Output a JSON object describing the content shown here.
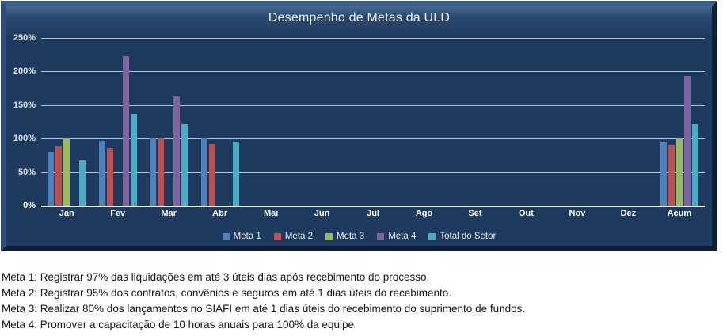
{
  "chart": {
    "panel_bg": "#1F3A5F",
    "grid_color": "#CBD8EA",
    "text_color": "#FFFFFF",
    "bevel_light": "#3A608C",
    "bevel_dark": "#101F38"
  },
  "chart_data": {
    "type": "bar",
    "title": "Desempenho de Metas da ULD",
    "categories": [
      "Jan",
      "Fev",
      "Mar",
      "Abr",
      "Mai",
      "Jun",
      "Jul",
      "Ago",
      "Set",
      "Out",
      "Nov",
      "Dez",
      "Acum"
    ],
    "series": [
      {
        "name": "Meta 1",
        "color": "#4F81BD",
        "values": [
          80,
          97,
          100,
          100,
          0,
          0,
          0,
          0,
          0,
          0,
          0,
          0,
          94
        ]
      },
      {
        "name": "Meta 2",
        "color": "#C0504D",
        "values": [
          88,
          86,
          100,
          92,
          0,
          0,
          0,
          0,
          0,
          0,
          0,
          0,
          91
        ]
      },
      {
        "name": "Meta 3",
        "color": "#9BBB59",
        "values": [
          100,
          0,
          0,
          0,
          0,
          0,
          0,
          0,
          0,
          0,
          0,
          0,
          100
        ]
      },
      {
        "name": "Meta 4",
        "color": "#8064A2",
        "values": [
          0,
          223,
          163,
          0,
          0,
          0,
          0,
          0,
          0,
          0,
          0,
          0,
          193
        ]
      },
      {
        "name": "Total do Setor",
        "color": "#4BACC6",
        "values": [
          67,
          137,
          121,
          95,
          0,
          0,
          0,
          0,
          0,
          0,
          0,
          0,
          121
        ]
      }
    ],
    "ylim": [
      0,
      250
    ],
    "y_ticks": [
      "0%",
      "50%",
      "100%",
      "150%",
      "200%",
      "250%"
    ],
    "y_tick_values": [
      0,
      50,
      100,
      150,
      200,
      250
    ],
    "grid": true,
    "legend_position": "bottom"
  },
  "footnotes": {
    "lines": [
      "Meta 1: Registrar 97% das liquidações em até 3 úteis dias após recebimento do processo.",
      "Meta 2: Registrar 95% dos contratos, convênios e seguros em até 1 dias úteis do recebimento.",
      "Meta 3: Realizar 80% dos lançamentos no SIAFI em até 1 dias úteis do recebimento do suprimento de fundos.",
      "Meta 4: Promover a capacitação de 10 horas anuais para 100% da equipe"
    ]
  }
}
